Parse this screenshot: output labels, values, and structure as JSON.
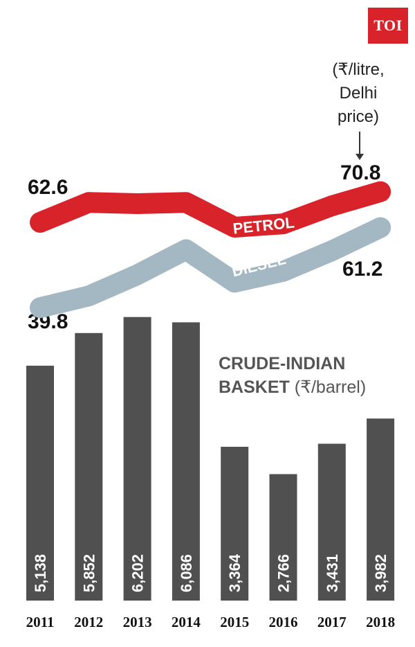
{
  "brand": {
    "logo_text": "TOI",
    "color": "#d8232a"
  },
  "chart_data": [
    {
      "type": "line",
      "unit_note": "(₹/litre, Delhi price)",
      "categories": [
        "2011",
        "2012",
        "2013",
        "2014",
        "2015",
        "2016",
        "2017",
        "2018"
      ],
      "series": [
        {
          "name": "PETROL",
          "color": "#d8232a",
          "values": [
            62.6,
            67.9,
            67.6,
            67.9,
            61.3,
            62.2,
            67.0,
            70.8
          ]
        },
        {
          "name": "DIESEL",
          "color": "#a3b8c3",
          "values": [
            39.8,
            42.9,
            48.6,
            55.3,
            46.6,
            49.5,
            55.0,
            61.2
          ]
        }
      ],
      "labels": {
        "petrol_start": "62.6",
        "petrol_end": "70.8",
        "diesel_start": "39.8",
        "diesel_end": "61.2"
      }
    },
    {
      "type": "bar",
      "title": "CRUDE-INDIAN BASKET (₹/barrel)",
      "title_main": "CRUDE-INDIAN",
      "title_line2": "BASKET",
      "title_unit": "(₹/barrel)",
      "categories": [
        "2011",
        "2012",
        "2013",
        "2014",
        "2015",
        "2016",
        "2017",
        "2018"
      ],
      "values": [
        5138,
        5852,
        6202,
        6086,
        3364,
        2766,
        3431,
        3982
      ],
      "value_labels": [
        "5,138",
        "5,852",
        "6,202",
        "6,086",
        "3,364",
        "2,766",
        "3,431",
        "3,982"
      ],
      "bar_color": "#505050"
    }
  ]
}
